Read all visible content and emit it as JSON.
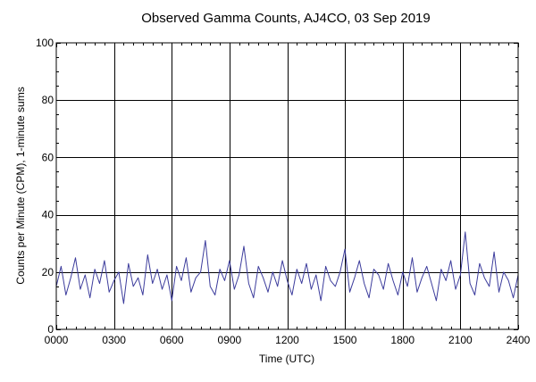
{
  "chart_data": {
    "type": "line",
    "title": "Observed Gamma Counts, AJ4CO, 03 Sep 2019",
    "xlabel": "Time (UTC)",
    "ylabel": "Counts per Minute (CPM), 1-minute sums",
    "xlim": [
      0,
      1440
    ],
    "ylim": [
      0,
      100
    ],
    "x_unit": "minutes",
    "x_ticks": [
      {
        "value": 0,
        "label": "0000"
      },
      {
        "value": 180,
        "label": "0300"
      },
      {
        "value": 360,
        "label": "0600"
      },
      {
        "value": 540,
        "label": "0900"
      },
      {
        "value": 720,
        "label": "1200"
      },
      {
        "value": 900,
        "label": "1500"
      },
      {
        "value": 1080,
        "label": "1800"
      },
      {
        "value": 1260,
        "label": "2100"
      },
      {
        "value": 1440,
        "label": "2400"
      }
    ],
    "y_ticks": [
      {
        "value": 0,
        "label": "0"
      },
      {
        "value": 20,
        "label": "20"
      },
      {
        "value": 40,
        "label": "40"
      },
      {
        "value": 60,
        "label": "60"
      },
      {
        "value": 80,
        "label": "80"
      },
      {
        "value": 100,
        "label": "100"
      }
    ],
    "grid": true,
    "series": [
      {
        "color": "#3c3c9c",
        "sampling": "15-minute approximations of 1-minute counts",
        "x": [
          0,
          15,
          30,
          45,
          60,
          75,
          90,
          105,
          120,
          135,
          150,
          165,
          180,
          195,
          210,
          225,
          240,
          255,
          270,
          285,
          300,
          315,
          330,
          345,
          360,
          375,
          390,
          405,
          420,
          435,
          450,
          465,
          480,
          495,
          510,
          525,
          540,
          555,
          570,
          585,
          600,
          615,
          630,
          645,
          660,
          675,
          690,
          705,
          720,
          735,
          750,
          765,
          780,
          795,
          810,
          825,
          840,
          855,
          870,
          885,
          900,
          915,
          930,
          945,
          960,
          975,
          990,
          1005,
          1020,
          1035,
          1050,
          1065,
          1080,
          1095,
          1110,
          1125,
          1140,
          1155,
          1170,
          1185,
          1200,
          1215,
          1230,
          1245,
          1260,
          1275,
          1290,
          1305,
          1320,
          1335,
          1350,
          1365,
          1380,
          1395,
          1410,
          1425,
          1440
        ],
        "values": [
          15,
          22,
          12,
          18,
          25,
          14,
          19,
          11,
          21,
          16,
          24,
          13,
          17,
          20,
          9,
          23,
          15,
          18,
          12,
          26,
          16,
          21,
          14,
          19,
          10,
          22,
          17,
          25,
          13,
          18,
          20,
          31,
          15,
          12,
          21,
          17,
          24,
          14,
          19,
          29,
          16,
          11,
          22,
          18,
          13,
          20,
          15,
          24,
          17,
          12,
          21,
          16,
          23,
          14,
          19,
          10,
          22,
          17,
          15,
          20,
          28,
          13,
          18,
          24,
          16,
          11,
          21,
          19,
          14,
          23,
          17,
          12,
          20,
          15,
          25,
          13,
          18,
          22,
          16,
          10,
          21,
          17,
          24,
          14,
          19,
          34,
          16,
          12,
          23,
          18,
          15,
          27,
          13,
          20,
          17,
          11,
          19
        ]
      }
    ]
  }
}
